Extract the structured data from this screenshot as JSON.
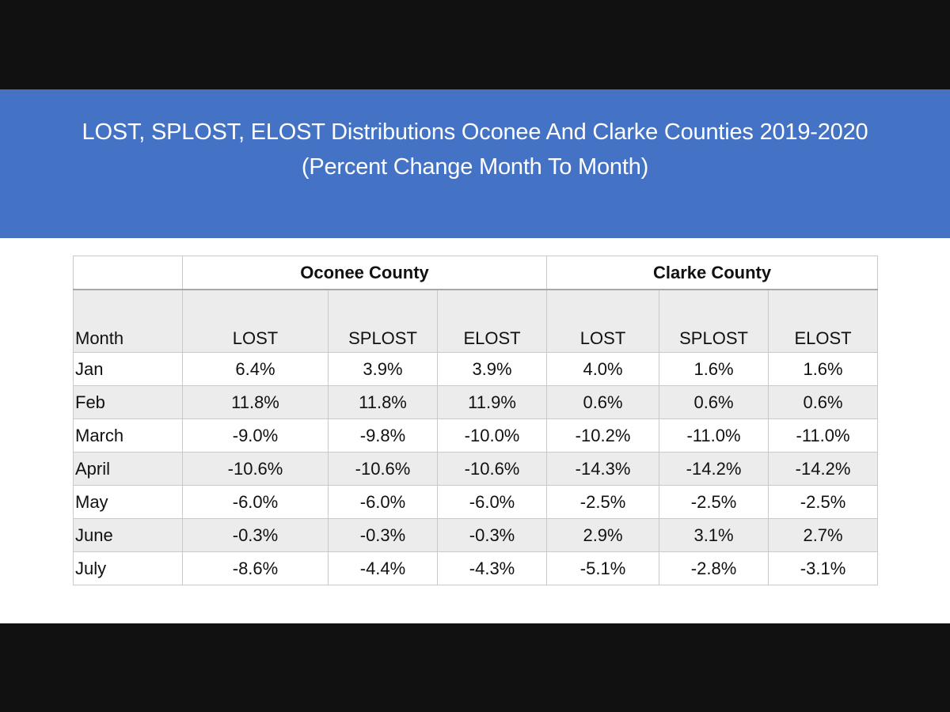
{
  "title": {
    "line1": "LOST, SPLOST, ELOST Distributions Oconee And Clarke Counties 2019-2020",
    "line2": "(Percent Change Month To Month)"
  },
  "table": {
    "groups": [
      "Oconee County",
      "Clarke County"
    ],
    "month_header": "Month",
    "subheaders": [
      "LOST",
      "SPLOST",
      "ELOST",
      "LOST",
      "SPLOST",
      "ELOST"
    ],
    "rows": [
      {
        "month": "Jan",
        "values": [
          "6.4%",
          "3.9%",
          "3.9%",
          "4.0%",
          "1.6%",
          "1.6%"
        ]
      },
      {
        "month": "Feb",
        "values": [
          "11.8%",
          "11.8%",
          "11.9%",
          "0.6%",
          "0.6%",
          "0.6%"
        ]
      },
      {
        "month": "March",
        "values": [
          "-9.0%",
          "-9.8%",
          "-10.0%",
          "-10.2%",
          "-11.0%",
          "-11.0%"
        ]
      },
      {
        "month": "April",
        "values": [
          "-10.6%",
          "-10.6%",
          "-10.6%",
          "-14.3%",
          "-14.2%",
          "-14.2%"
        ]
      },
      {
        "month": "May",
        "values": [
          "-6.0%",
          "-6.0%",
          "-6.0%",
          "-2.5%",
          "-2.5%",
          "-2.5%"
        ]
      },
      {
        "month": "June",
        "values": [
          "-0.3%",
          "-0.3%",
          "-0.3%",
          "2.9%",
          "3.1%",
          "2.7%"
        ]
      },
      {
        "month": "July",
        "values": [
          "-8.6%",
          "-4.4%",
          "-4.3%",
          "-5.1%",
          "-2.8%",
          "-3.1%"
        ]
      }
    ]
  },
  "colors": {
    "banner": "#4472c4",
    "letterbox": "#111111",
    "row_shade": "#ececec"
  }
}
